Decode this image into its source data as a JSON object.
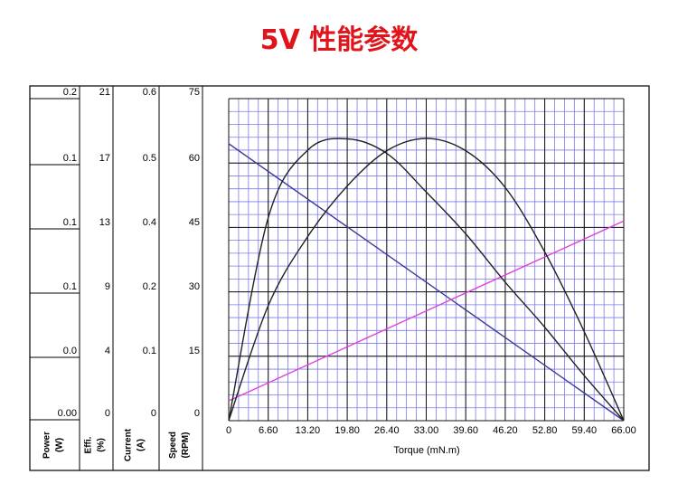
{
  "title": "5V 性能参数",
  "chart_data": {
    "type": "line",
    "xlabel": "Torque (mN.m)",
    "xlim": [
      0,
      66
    ],
    "x_ticks": [
      "0",
      "6.60",
      "13.20",
      "19.80",
      "26.40",
      "33.00",
      "39.60",
      "46.20",
      "52.80",
      "59.40",
      "66.00"
    ],
    "y_axes": [
      {
        "label": "Power",
        "unit": "(W)",
        "ticks": [
          "0.2",
          "0.1",
          "0.1",
          "0.1",
          "0.0",
          "0.00"
        ]
      },
      {
        "label": "Effi.",
        "unit": "(%)",
        "ticks": [
          "21",
          "17",
          "13",
          "9",
          "4",
          "0"
        ]
      },
      {
        "label": "Current",
        "unit": "(A)",
        "ticks": [
          "0.6",
          "0.5",
          "0.4",
          "0.2",
          "0.1",
          "0"
        ]
      },
      {
        "label": "Speed",
        "unit": "(RPM)",
        "ticks": [
          "75",
          "60",
          "45",
          "30",
          "15",
          "0"
        ]
      }
    ],
    "grid": true,
    "series": [
      {
        "axis": "Speed (RPM)",
        "color": "#3a3a9c",
        "x": [
          0,
          66
        ],
        "y": [
          64.5,
          0
        ]
      },
      {
        "axis": "Current (A)",
        "color": "#e040e0",
        "x": [
          0,
          66
        ],
        "y": [
          0.037,
          0.372
        ]
      },
      {
        "axis": "Power (W)",
        "color": "#222222",
        "x": [
          0,
          6.6,
          13.2,
          19.8,
          26.4,
          33.0,
          39.6,
          46.2,
          52.8,
          59.4,
          66.0
        ],
        "y": [
          0,
          0.126,
          0.168,
          0.175,
          0.166,
          0.142,
          0.116,
          0.086,
          0.058,
          0.028,
          0
        ]
      },
      {
        "axis": "Effi. (%)",
        "color": "#222222",
        "x": [
          0,
          6.6,
          13.2,
          19.8,
          26.4,
          33.0,
          39.6,
          46.2,
          52.8,
          59.4,
          66.0
        ],
        "y": [
          0,
          7.5,
          12.0,
          15.3,
          17.6,
          18.4,
          17.6,
          15.2,
          11.0,
          5.8,
          0
        ]
      }
    ]
  }
}
